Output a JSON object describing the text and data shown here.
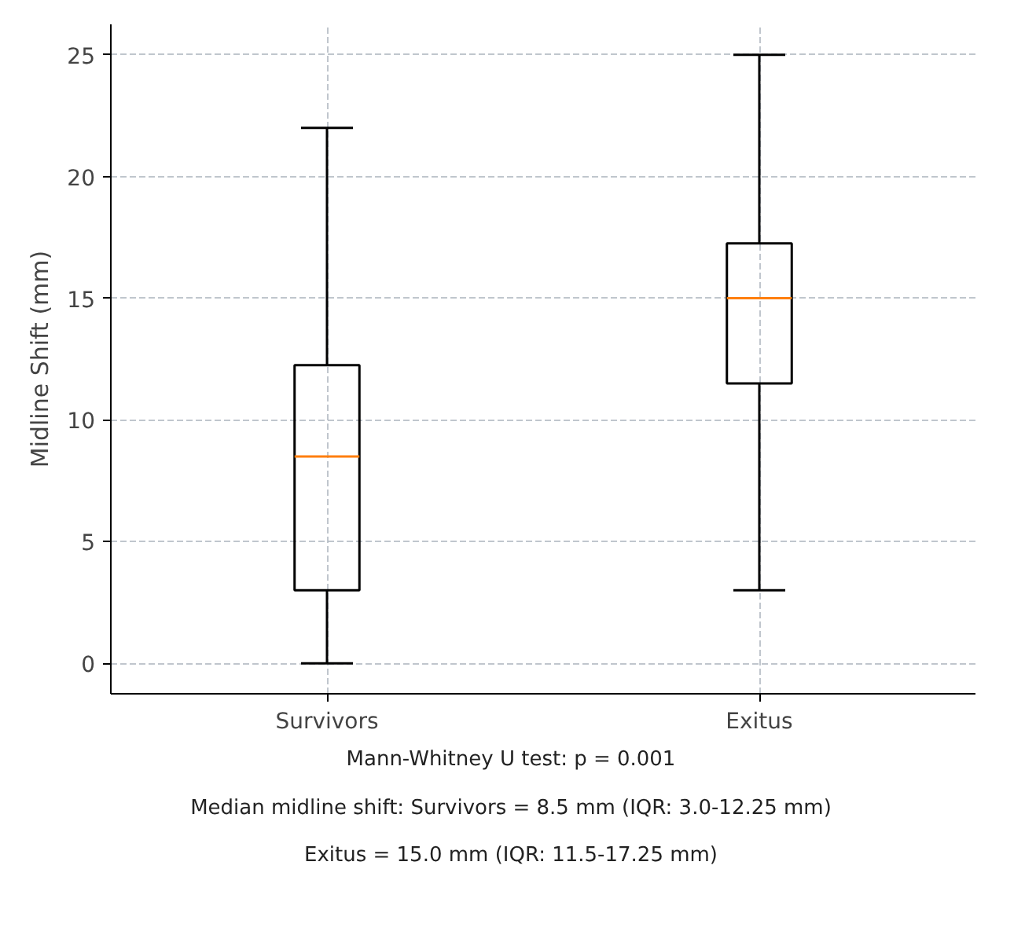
{
  "chart_data": {
    "type": "box",
    "ylabel": "Midline Shift (mm)",
    "categories": [
      "Survivors",
      "Exitus"
    ],
    "boxes": [
      {
        "low": 0,
        "q1": 3,
        "median": 8.5,
        "q3": 12.25,
        "high": 22
      },
      {
        "low": 3,
        "q1": 11.5,
        "median": 15,
        "q3": 17.25,
        "high": 25
      }
    ],
    "ylim": [
      -1.25,
      26.25
    ],
    "yticks": [
      0,
      5,
      10,
      15,
      20,
      25
    ],
    "grid": true,
    "annotations": [
      "Mann-Whitney U test: p = 0.001",
      "Median midline shift: Survivors = 8.5 mm (IQR: 3.0-12.25 mm)",
      "Exitus = 15.0 mm (IQR: 11.5-17.25 mm)"
    ]
  }
}
